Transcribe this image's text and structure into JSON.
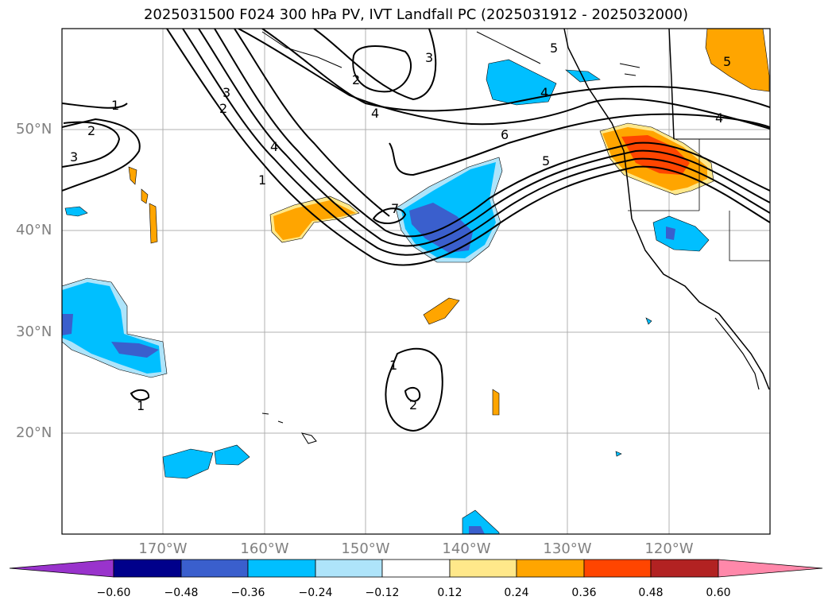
{
  "title": "2025031500 F024 300 hPa PV, IVT Landfall PC (2025031912 - 2025032000)",
  "lat_labels": [
    "50°N",
    "40°N",
    "30°N",
    "20°N"
  ],
  "lon_labels": [
    "170°W",
    "160°W",
    "150°W",
    "140°W",
    "130°W",
    "120°W"
  ],
  "colorbar": {
    "ticks": [
      "−0.60",
      "−0.48",
      "−0.36",
      "−0.24",
      "−0.12",
      "0.12",
      "0.24",
      "0.36",
      "0.48",
      "0.60"
    ],
    "colors": [
      "#9933cc",
      "#00008b",
      "#3a5fcd",
      "#00bfff",
      "#aee4fa",
      "#ffffff",
      "#ffe88a",
      "#ffa500",
      "#ff4500",
      "#b22222",
      "#ff88aa"
    ]
  },
  "contour_labels": {
    "c1": "1",
    "c2": "2",
    "c3": "3",
    "c4": "4",
    "c5": "5",
    "c6": "6",
    "c7": "7"
  }
}
